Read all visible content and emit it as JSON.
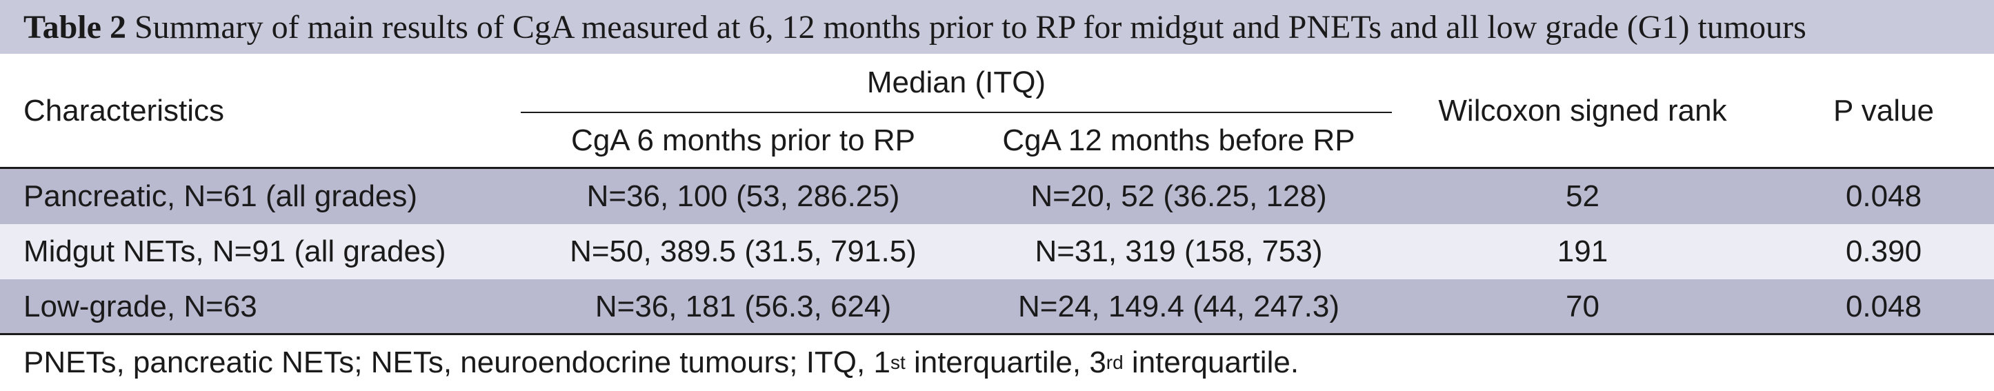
{
  "table": {
    "label": "Table 2",
    "caption": "Summary of main results of CgA measured at 6, 12 months prior to RP for midgut and PNETs and all low grade (G1) tumours",
    "headers": {
      "characteristics": "Characteristics",
      "group": "Median (ITQ)",
      "col6": "CgA 6 months prior to RP",
      "col12": "CgA 12 months before RP",
      "wilcoxon": "Wilcoxon signed rank",
      "pvalue": "P value"
    },
    "rows": [
      {
        "characteristic": "Pancreatic, N=61 (all grades)",
        "cga6": "N=36, 100 (53, 286.25)",
        "cga12": "N=20, 52 (36.25, 128)",
        "wilcoxon": "52",
        "p": "0.048"
      },
      {
        "characteristic": "Midgut NETs, N=91 (all grades)",
        "cga6": "N=50, 389.5 (31.5, 791.5)",
        "cga12": "N=31, 319 (158, 753)",
        "wilcoxon": "191",
        "p": "0.390"
      },
      {
        "characteristic": "Low-grade, N=63",
        "cga6": "N=36, 181 (56.3, 624)",
        "cga12": "N=24, 149.4 (44, 247.3)",
        "wilcoxon": "70",
        "p": "0.048"
      }
    ],
    "footnote": {
      "part1": "PNETs, pancreatic NETs; NETs, neuroendocrine tumours; ITQ, 1",
      "sup1": "st",
      "part2": " interquartile, 3",
      "sup2": "rd",
      "part3": " interquartile."
    },
    "colors": {
      "caption_bg": "#c9c9dc",
      "shaded_row": "#b9b9d0",
      "plain_row": "#ececf4"
    }
  }
}
